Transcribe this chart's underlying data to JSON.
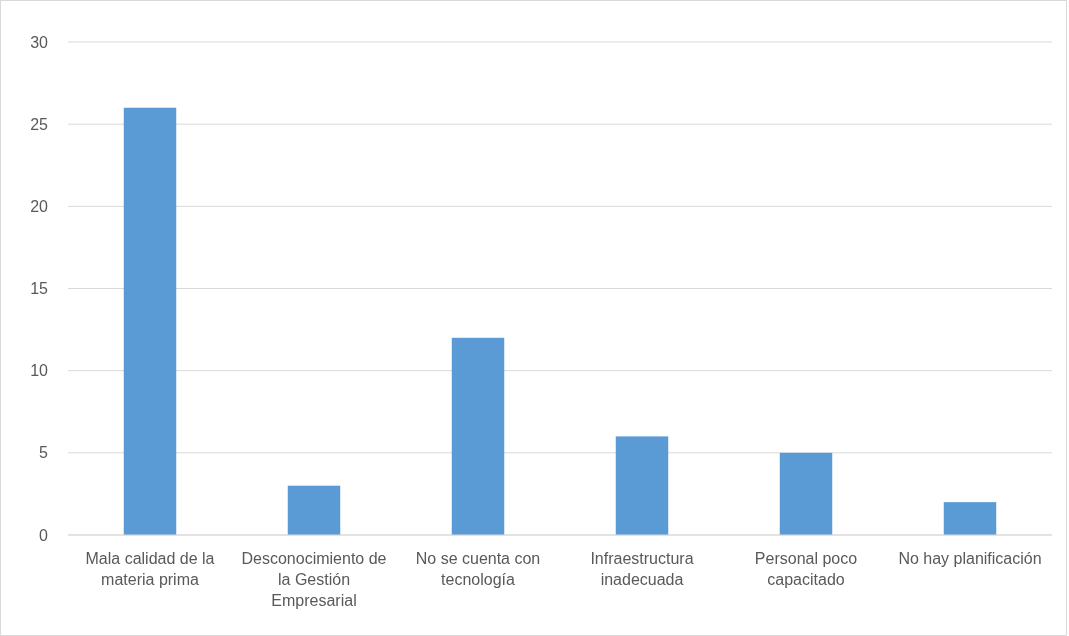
{
  "chart_data": {
    "type": "bar",
    "categories": [
      "Mala calidad de la materia prima",
      "Desconocimiento de la Gestión Empresarial",
      "No se cuenta con tecnología",
      "Infraestructura inadecuada",
      "Personal poco capacitado",
      "No hay planificación"
    ],
    "values": [
      26,
      3,
      12,
      6,
      5,
      2
    ],
    "color": "#5b9bd5",
    "ylim": [
      0,
      30
    ],
    "yticks": [
      0,
      5,
      10,
      15,
      20,
      25,
      30
    ],
    "grid": "y"
  }
}
